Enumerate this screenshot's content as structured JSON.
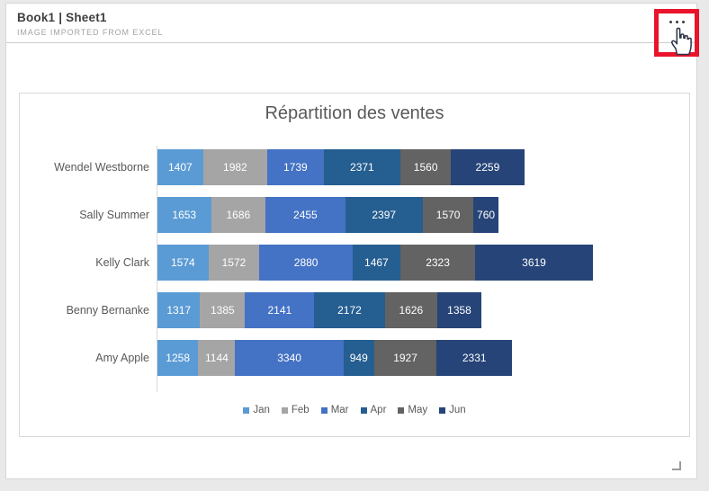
{
  "header": {
    "title": "Book1 | Sheet1",
    "subtitle": "IMAGE IMPORTED FROM EXCEL"
  },
  "annotation": {
    "highlight_color": "#e9132b",
    "target": "more-options-button"
  },
  "chart_data": {
    "type": "bar",
    "orientation": "horizontal-stacked",
    "title": "Répartition des ventes",
    "categories": [
      "Wendel Westborne",
      "Sally Summer",
      "Kelly Clark",
      "Benny Bernanke",
      "Amy Apple"
    ],
    "series": [
      {
        "name": "Jan",
        "color": "#5B9BD5",
        "values": [
          1407,
          1653,
          1574,
          1317,
          1258
        ]
      },
      {
        "name": "Feb",
        "color": "#A5A5A5",
        "values": [
          1982,
          1686,
          1572,
          1385,
          1144
        ]
      },
      {
        "name": "Mar",
        "color": "#4472C4",
        "values": [
          1739,
          2455,
          2880,
          2141,
          3340
        ]
      },
      {
        "name": "Apr",
        "color": "#255E91",
        "values": [
          2371,
          2397,
          1467,
          2172,
          949
        ]
      },
      {
        "name": "May",
        "color": "#636363",
        "values": [
          1560,
          1570,
          2323,
          1626,
          1927
        ]
      },
      {
        "name": "Jun",
        "color": "#264478",
        "values": [
          2259,
          760,
          3619,
          1358,
          2331
        ]
      }
    ],
    "data_labels": true,
    "data_label_color": "#ffffff",
    "legend_position": "bottom",
    "text_color": "#595959",
    "xlim": [
      0,
      13435
    ]
  }
}
